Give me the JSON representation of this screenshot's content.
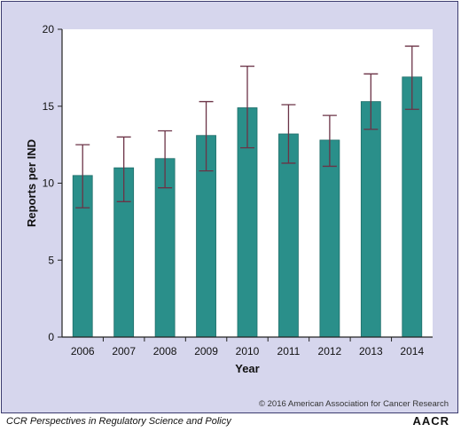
{
  "chart_data": {
    "type": "bar",
    "categories": [
      "2006",
      "2007",
      "2008",
      "2009",
      "2010",
      "2011",
      "2012",
      "2013",
      "2014"
    ],
    "values": [
      10.5,
      11.0,
      11.6,
      13.1,
      14.9,
      13.2,
      12.8,
      15.3,
      16.9
    ],
    "error_low": [
      8.4,
      8.8,
      9.7,
      10.8,
      12.3,
      11.3,
      11.1,
      13.5,
      14.8
    ],
    "error_high": [
      12.5,
      13.0,
      13.4,
      15.3,
      17.6,
      15.1,
      14.4,
      17.1,
      18.9
    ],
    "xlabel": "Year",
    "ylabel": "Reports per IND",
    "ylim": [
      0,
      20
    ],
    "yticks": [
      "0",
      "5",
      "10",
      "15",
      "20"
    ],
    "grid": false,
    "colors": {
      "bar": "#2a8f8a",
      "bar_stroke": "#1f6d69",
      "error_bar": "#6b3346",
      "plot_bg": "#ffffff",
      "frame_bg": "#d6d6ed"
    }
  },
  "copyright": "© 2016 American Association for Cancer Research",
  "footer": {
    "title": "CCR Perspectives in Regulatory Science and Policy",
    "logo": "AACR"
  }
}
